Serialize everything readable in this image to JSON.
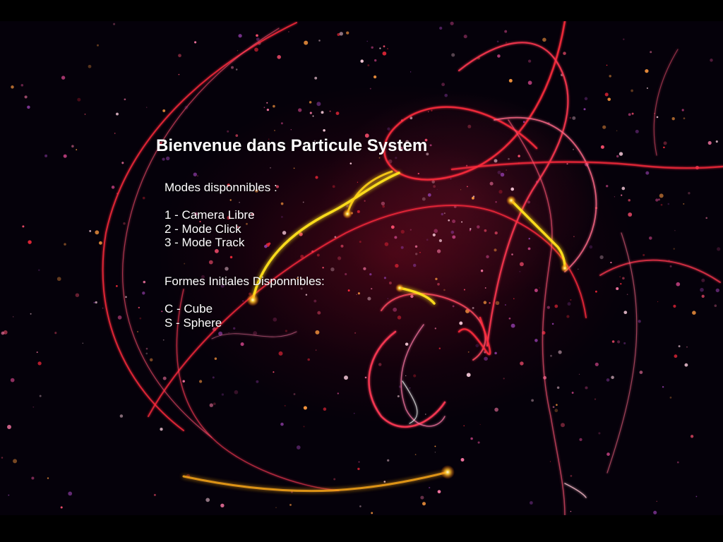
{
  "welcome": {
    "title": "Bienvenue dans Particule System"
  },
  "modes": {
    "heading": "Modes disponnibles :",
    "items": [
      "1 - Camera Libre",
      "2 - Mode Click",
      "3 - Mode Track"
    ]
  },
  "shapes": {
    "heading": "Formes Initiales Disponnibles:",
    "items": [
      "C - Cube",
      "S - Sphere"
    ]
  },
  "colors": {
    "background": "#000000",
    "text": "#ffffff",
    "trail_red": "#ff2a3c",
    "trail_pink": "#ff7aa8",
    "trail_yellow": "#ffe21a",
    "glow_orange": "#ff9a20"
  }
}
